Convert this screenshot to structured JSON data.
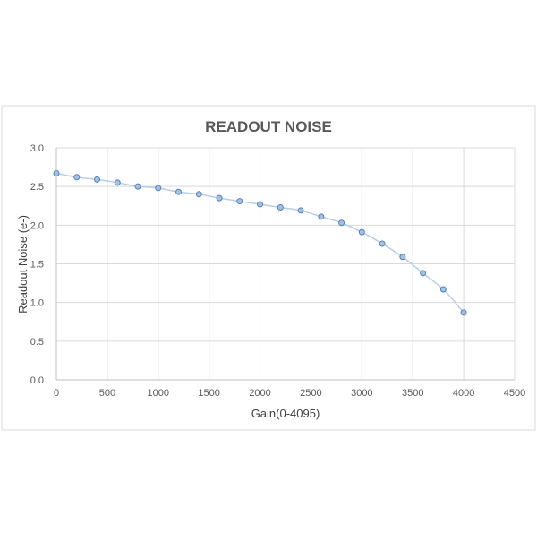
{
  "chart_data": {
    "type": "scatter",
    "title": "READOUT NOISE",
    "xlabel": "Gain(0-4095)",
    "ylabel": "Readout Noise (e-)",
    "xlim": [
      0,
      4500
    ],
    "ylim": [
      0,
      3.0
    ],
    "x_ticks": [
      0,
      500,
      1000,
      1500,
      2000,
      2500,
      3000,
      3500,
      4000,
      4500
    ],
    "y_ticks": [
      0.0,
      0.5,
      1.0,
      1.5,
      2.0,
      2.5,
      3.0
    ],
    "x_tick_labels": [
      "0",
      "500",
      "1000",
      "1500",
      "2000",
      "2500",
      "3000",
      "3500",
      "4000",
      "4500"
    ],
    "y_tick_labels": [
      "0.0",
      "0.5",
      "1.0",
      "1.5",
      "2.0",
      "2.5",
      "3.0"
    ],
    "grid": true,
    "legend": "none",
    "smoothed_line": true,
    "series": [
      {
        "x": [
          0,
          200,
          400,
          600,
          800,
          1000,
          1200,
          1400,
          1600,
          1800,
          2000,
          2200,
          2400,
          2600,
          2800,
          3000,
          3200,
          3400,
          3600,
          3800,
          4000
        ],
        "values": [
          2.67,
          2.62,
          2.59,
          2.55,
          2.5,
          2.48,
          2.43,
          2.4,
          2.35,
          2.31,
          2.27,
          2.23,
          2.19,
          2.11,
          2.03,
          1.91,
          1.76,
          1.59,
          1.38,
          1.17,
          0.87
        ],
        "color": "#4f81bd"
      }
    ],
    "colors": {
      "line": "#b9cde5",
      "marker_fill": "#a7c0e0",
      "marker_stroke": "#4f81bd",
      "grid": "#d9d9d9",
      "text": "#595959",
      "title": "#595959"
    }
  }
}
